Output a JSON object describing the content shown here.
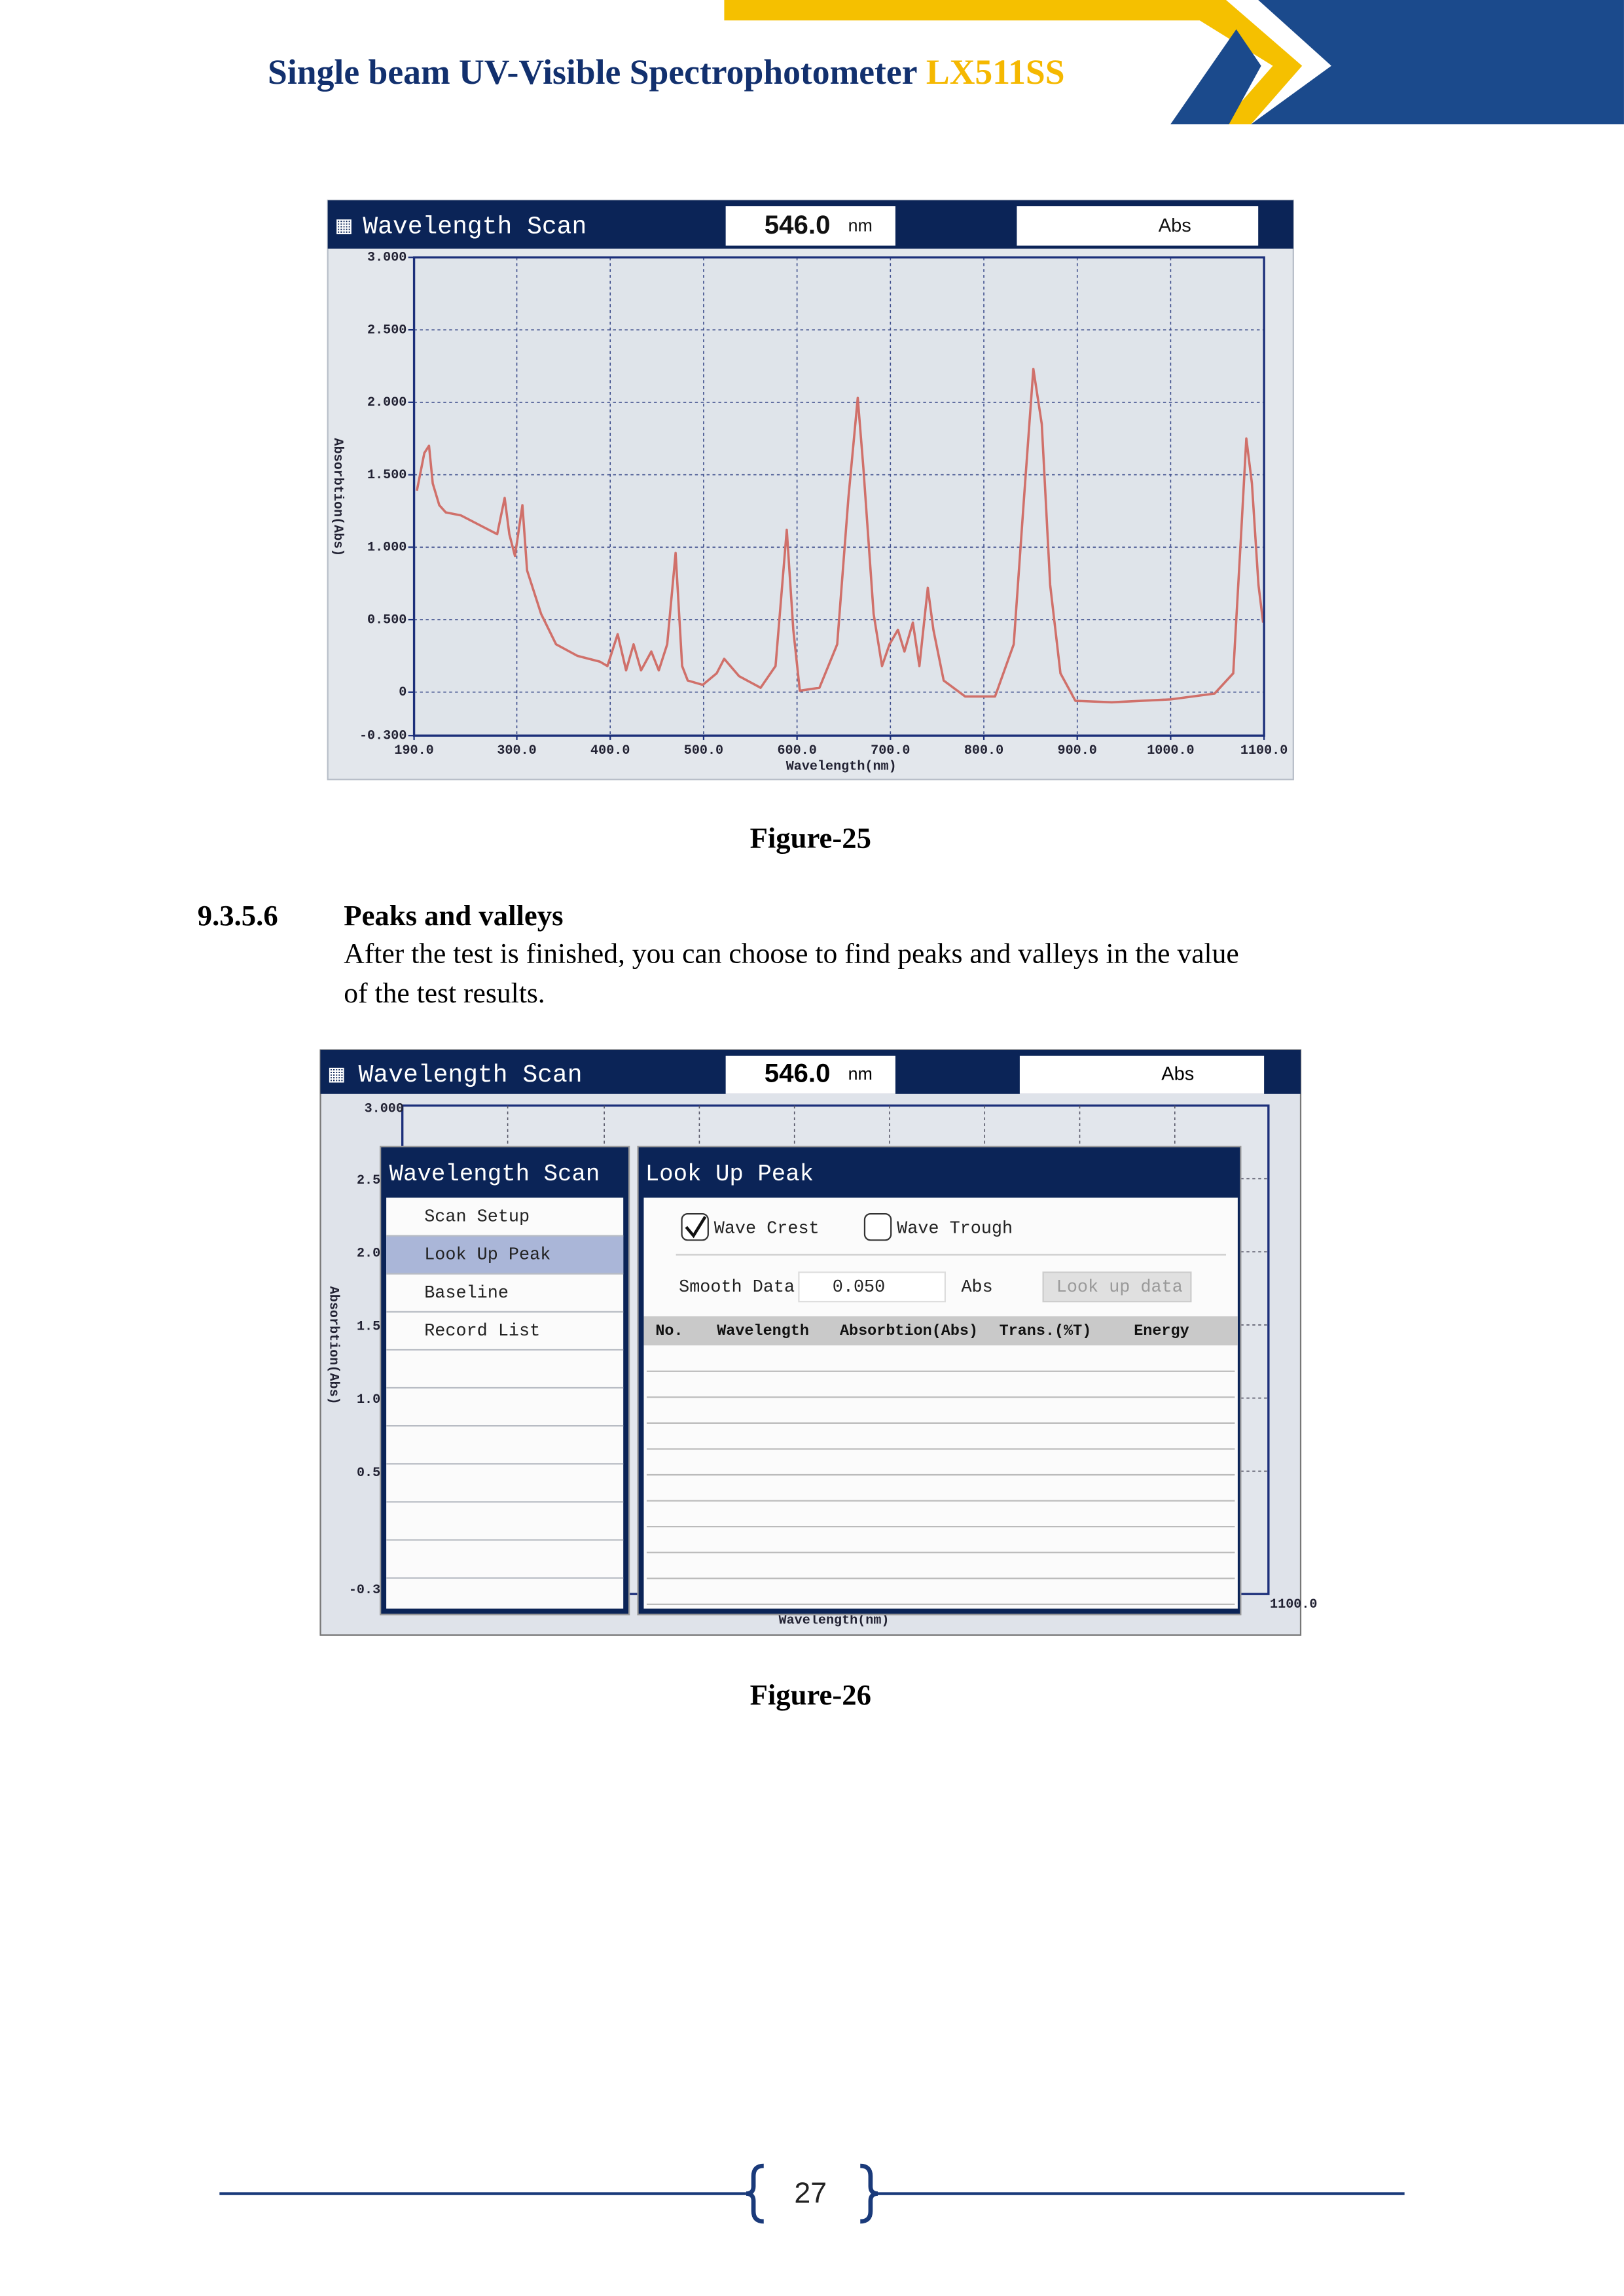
{
  "header": {
    "title": "Single beam UV-Visible Spectrophotometer",
    "model": "LX511SS"
  },
  "figure25": {
    "screen_title": "Wavelength Scan",
    "wavelength": "546.0",
    "unit": "nm",
    "mode": "Abs",
    "chart_data": {
      "type": "line",
      "xlabel": "Wavelength(nm)",
      "ylabel": "Absorbtion(Abs)",
      "color": "#d0706a",
      "grid": true,
      "xlim": [
        190,
        1100
      ],
      "ylim": [
        -0.3,
        3.0
      ],
      "xticks": [
        {
          "value": 190,
          "label": "190.0"
        },
        {
          "value": 300,
          "label": "300.0"
        },
        {
          "value": 400,
          "label": "400.0"
        },
        {
          "value": 500,
          "label": "500.0"
        },
        {
          "value": 600,
          "label": "600.0"
        },
        {
          "value": 700,
          "label": "700.0"
        },
        {
          "value": 800,
          "label": "800.0"
        },
        {
          "value": 900,
          "label": "900.0"
        },
        {
          "value": 1000,
          "label": "1000.0"
        },
        {
          "value": 1100,
          "label": "1100.0"
        }
      ],
      "yticks": [
        {
          "value": -0.3,
          "label": "-0.300"
        },
        0,
        {
          "value": 0.5,
          "label": "0.500"
        },
        {
          "value": 1,
          "label": "1.000"
        },
        {
          "value": 1.5,
          "label": "1.500"
        },
        {
          "value": 2,
          "label": "2.000"
        },
        {
          "value": 2.5,
          "label": "2.500"
        },
        {
          "value": 3,
          "label": "3.000"
        }
      ],
      "x": [
        193,
        201,
        206,
        210,
        217,
        224,
        240,
        264,
        279,
        287,
        292,
        298,
        306,
        311,
        326,
        342,
        365,
        389,
        397,
        408,
        417,
        425,
        433,
        444,
        452,
        461,
        470,
        477,
        483,
        499,
        514,
        522,
        538,
        561,
        577,
        589,
        596,
        603,
        624,
        643,
        655,
        665,
        671,
        682,
        691,
        699,
        708,
        715,
        724,
        731,
        740,
        746,
        757,
        780,
        812,
        832,
        843,
        853,
        862,
        871,
        882,
        898,
        937,
        1000,
        1047,
        1067,
        1075,
        1081,
        1087,
        1094,
        1099
      ],
      "y": [
        1.39,
        1.65,
        1.7,
        1.44,
        1.29,
        1.24,
        1.22,
        1.14,
        1.09,
        1.34,
        1.09,
        0.94,
        1.29,
        0.84,
        0.54,
        0.33,
        0.25,
        0.21,
        0.18,
        0.4,
        0.15,
        0.33,
        0.15,
        0.28,
        0.15,
        0.33,
        0.96,
        0.18,
        0.08,
        0.05,
        0.13,
        0.23,
        0.11,
        0.03,
        0.18,
        1.12,
        0.43,
        0.01,
        0.03,
        0.33,
        1.34,
        2.03,
        1.55,
        0.54,
        0.18,
        0.33,
        0.43,
        0.28,
        0.48,
        0.18,
        0.72,
        0.43,
        0.08,
        -0.03,
        -0.03,
        0.33,
        1.34,
        2.23,
        1.85,
        0.74,
        0.13,
        -0.06,
        -0.07,
        -0.05,
        -0.01,
        0.13,
        1.04,
        1.75,
        1.44,
        0.74,
        0.48
      ]
    },
    "caption": "Figure-25"
  },
  "section": {
    "number": "9.3.5.6",
    "title": "Peaks and valleys",
    "lines": [
      "After the test is finished, you can choose to find peaks and valleys in the value",
      "of the test results."
    ]
  },
  "figure26": {
    "screen_title": "Wavelength Scan",
    "wavelength": "546.0",
    "unit": "nm",
    "mode": "Abs",
    "axis_labels": [
      "3.000",
      "2.5",
      "2.0",
      "1.5",
      "1.0",
      "0.5",
      "-0.3"
    ],
    "x_end": "1100.0",
    "xlabel": "Wavelength(nm)",
    "ylabel": "Absorbtion(Abs)",
    "menu": {
      "title": "Wavelength Scan",
      "items": [
        "Scan Setup",
        "Look Up Peak",
        "Baseline",
        "Record List"
      ]
    },
    "dialog": {
      "title": "Look Up Peak",
      "crest": "Wave Crest",
      "trough": "Wave Trough",
      "smooth_label": "Smooth Data",
      "smooth_value": "0.050",
      "smooth_unit": "Abs",
      "button": "Look up data",
      "columns": [
        "No.",
        "Wavelength",
        "Absorbtion(Abs)",
        "Trans.(%T)",
        "Energy"
      ]
    },
    "caption": "Figure-26"
  },
  "footer": {
    "page": "27"
  }
}
